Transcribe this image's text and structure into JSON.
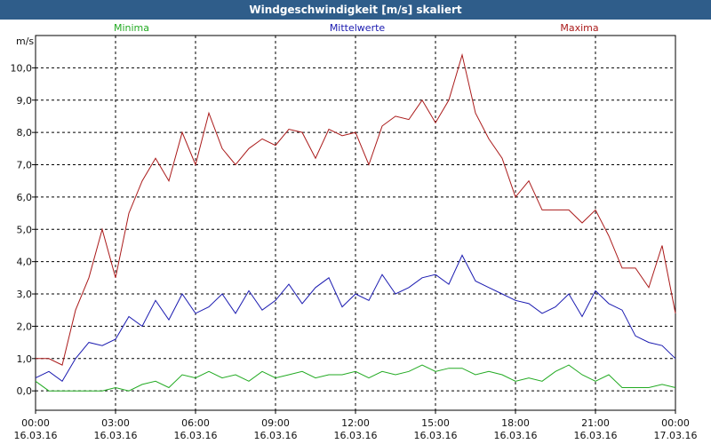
{
  "window": {
    "title": "Windgeschwindigkeit [m/s] skaliert"
  },
  "colors": {
    "min": "#22aa22",
    "mean": "#1a1ab0",
    "max": "#aa1a1a",
    "grid": "#000000",
    "titlebar": "#2f5d8a"
  },
  "chart_data": {
    "type": "line",
    "title": "Windgeschwindigkeit [m/s] skaliert",
    "ylabel": "m/s",
    "ylim": [
      -0.6,
      11.0
    ],
    "yticks": [
      0,
      1,
      2,
      3,
      4,
      5,
      6,
      7,
      8,
      9,
      10
    ],
    "ytick_labels": [
      "0,0",
      "1,0",
      "2,0",
      "3,0",
      "4,0",
      "5,0",
      "6,0",
      "7,0",
      "8,0",
      "9,0",
      "10,0"
    ],
    "xlim": [
      0,
      24
    ],
    "xticks": [
      0,
      3,
      6,
      9,
      12,
      15,
      18,
      21,
      24
    ],
    "xtick_time": [
      "00:00",
      "03:00",
      "06:00",
      "09:00",
      "12:00",
      "15:00",
      "18:00",
      "21:00",
      "00:00"
    ],
    "xtick_date": [
      "16.03.16",
      "16.03.16",
      "16.03.16",
      "16.03.16",
      "16.03.16",
      "16.03.16",
      "16.03.16",
      "16.03.16",
      "17.03.16"
    ],
    "grid": true,
    "series": [
      {
        "name": "Minima",
        "key": "min",
        "x": [
          0,
          0.5,
          1,
          1.5,
          2,
          2.5,
          3,
          3.5,
          4,
          4.5,
          5,
          5.5,
          6,
          6.5,
          7,
          7.5,
          8,
          8.5,
          9,
          9.5,
          10,
          10.5,
          11,
          11.5,
          12,
          12.5,
          13,
          13.5,
          14,
          14.5,
          15,
          15.5,
          16,
          16.5,
          17,
          17.5,
          18,
          18.5,
          19,
          19.5,
          20,
          20.5,
          21,
          21.5,
          22,
          22.5,
          23,
          23.5,
          24
        ],
        "values": [
          0.3,
          0.0,
          0.0,
          0.0,
          0.0,
          0.0,
          0.1,
          0.0,
          0.2,
          0.3,
          0.1,
          0.5,
          0.4,
          0.6,
          0.4,
          0.5,
          0.3,
          0.6,
          0.4,
          0.5,
          0.6,
          0.4,
          0.5,
          0.5,
          0.6,
          0.4,
          0.6,
          0.5,
          0.6,
          0.8,
          0.6,
          0.7,
          0.7,
          0.5,
          0.6,
          0.5,
          0.3,
          0.4,
          0.3,
          0.6,
          0.8,
          0.5,
          0.3,
          0.5,
          0.1,
          0.1,
          0.1,
          0.2,
          0.1
        ]
      },
      {
        "name": "Mittelwerte",
        "key": "mean",
        "x": [
          0,
          0.5,
          1,
          1.5,
          2,
          2.5,
          3,
          3.5,
          4,
          4.5,
          5,
          5.5,
          6,
          6.5,
          7,
          7.5,
          8,
          8.5,
          9,
          9.5,
          10,
          10.5,
          11,
          11.5,
          12,
          12.5,
          13,
          13.5,
          14,
          14.5,
          15,
          15.5,
          16,
          16.5,
          17,
          17.5,
          18,
          18.5,
          19,
          19.5,
          20,
          20.5,
          21,
          21.5,
          22,
          22.5,
          23,
          23.5,
          24
        ],
        "values": [
          0.4,
          0.6,
          0.3,
          1.0,
          1.5,
          1.4,
          1.6,
          2.3,
          2.0,
          2.8,
          2.2,
          3.0,
          2.4,
          2.6,
          3.0,
          2.4,
          3.1,
          2.5,
          2.8,
          3.3,
          2.7,
          3.2,
          3.5,
          2.6,
          3.0,
          2.8,
          3.6,
          3.0,
          3.2,
          3.5,
          3.6,
          3.3,
          4.2,
          3.4,
          3.2,
          3.0,
          2.8,
          2.7,
          2.4,
          2.6,
          3.0,
          2.3,
          3.1,
          2.7,
          2.5,
          1.7,
          1.5,
          1.4,
          1.0
        ]
      },
      {
        "name": "Maxima",
        "key": "max",
        "x": [
          0,
          0.5,
          1,
          1.5,
          2,
          2.5,
          3,
          3.5,
          4,
          4.5,
          5,
          5.5,
          6,
          6.5,
          7,
          7.5,
          8,
          8.5,
          9,
          9.5,
          10,
          10.5,
          11,
          11.5,
          12,
          12.5,
          13,
          13.5,
          14,
          14.5,
          15,
          15.5,
          16,
          16.5,
          17,
          17.5,
          18,
          18.5,
          19,
          19.5,
          20,
          20.5,
          21,
          21.5,
          22,
          22.5,
          23,
          23.5,
          24
        ],
        "values": [
          1.0,
          1.0,
          0.8,
          2.5,
          3.5,
          5.0,
          3.5,
          5.5,
          6.5,
          7.2,
          6.5,
          8.0,
          7.0,
          8.6,
          7.5,
          7.0,
          7.5,
          7.8,
          7.6,
          8.1,
          8.0,
          7.2,
          8.1,
          7.9,
          8.0,
          7.0,
          8.2,
          8.5,
          8.4,
          9.0,
          8.3,
          9.0,
          10.4,
          8.6,
          7.8,
          7.2,
          6.0,
          6.5,
          5.6,
          5.6,
          5.6,
          5.2,
          5.6,
          4.8,
          3.8,
          3.8,
          3.2,
          4.5,
          2.4
        ]
      }
    ]
  }
}
